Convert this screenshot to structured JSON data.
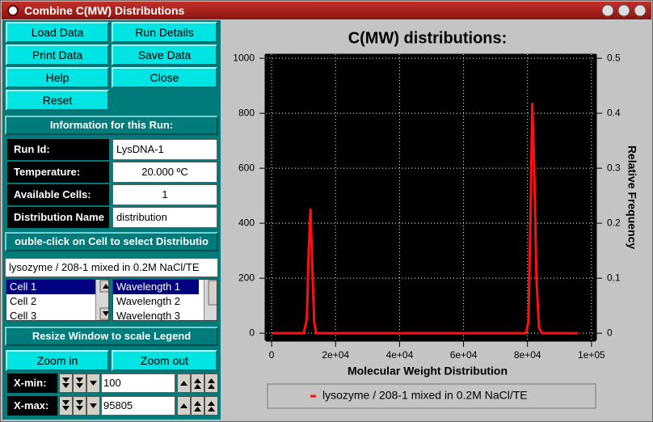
{
  "window": {
    "title": "Combine C(MW) Distributions"
  },
  "buttons": [
    "Load Data",
    "Run Details",
    "Print Data",
    "Save Data",
    "Help",
    "Close",
    "Reset"
  ],
  "info": {
    "heading": "Information for this Run:",
    "fields": [
      {
        "label": "Run Id:",
        "value": "LysDNA-1"
      },
      {
        "label": "Temperature:",
        "value": "20.000 ºC"
      },
      {
        "label": "Available Cells:",
        "value": "1"
      },
      {
        "label": "Distribution Name",
        "value": "distribution"
      }
    ]
  },
  "selection": {
    "heading": "ouble-click on Cell to select Distributio",
    "description": "lysozyme / 208-1 mixed in 0.2M NaCl/TE",
    "cells": [
      "Cell 1",
      "Cell 2",
      "Cell 3"
    ],
    "wavelengths": [
      "Wavelength 1",
      "Wavelength 2",
      "Wavelength 3"
    ]
  },
  "legend_heading": "Resize Window to scale Legend",
  "zoom": {
    "zoom_in": "Zoom in",
    "zoom_out": "Zoom out",
    "xmin": {
      "label": "X-min:",
      "value": "100"
    },
    "xmax": {
      "label": "X-max:",
      "value": "95805"
    }
  },
  "chart_data": {
    "type": "line",
    "title": "C(MW) distributions:",
    "x_label": "Molecular Weight Distribution",
    "y2_label": "Relative Frequency",
    "x": [
      100,
      10000,
      11000,
      11600,
      12150,
      12700,
      13300,
      14000,
      30000,
      60000,
      79500,
      80300,
      80900,
      81500,
      82100,
      82800,
      83600,
      84500,
      95805
    ],
    "series": [
      {
        "name": "lysozyme / 208-1 mixed in 0.2M NaCl/TE",
        "color": "#ff1010",
        "values": [
          0,
          0,
          50,
          300,
          450,
          250,
          40,
          0,
          0,
          0,
          0,
          40,
          400,
          835,
          600,
          200,
          20,
          0,
          0
        ]
      }
    ],
    "xlim": [
      -1800,
      101300
    ],
    "xticks": [
      0,
      {
        "value": 20000,
        "label": "2e+04"
      },
      {
        "value": 40000,
        "label": "4e+04"
      },
      {
        "value": 60000,
        "label": "6e+04"
      },
      {
        "value": 80000,
        "label": "8e+04"
      },
      {
        "value": 100000,
        "label": "1e+05"
      }
    ],
    "ylim": [
      -26,
      1015
    ],
    "yticks": [
      0,
      200,
      400,
      600,
      800,
      1000
    ],
    "y2lim": [
      -0.013,
      0.5075
    ],
    "y2ticks": [
      0,
      0.1,
      0.2,
      0.3,
      0.4,
      0.5
    ],
    "grid": true,
    "legend": "bottom"
  }
}
